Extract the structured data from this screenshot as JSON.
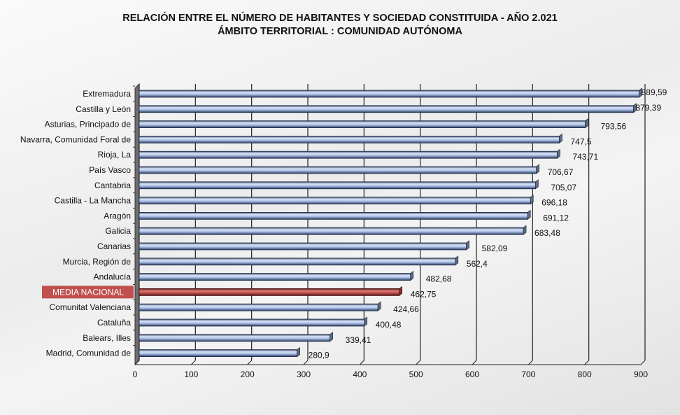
{
  "title_line1": "RELACIÓN ENTRE EL NÚMERO DE HABITANTES Y SOCIEDAD CONSTITUIDA - AÑO 2.021",
  "title_line2": "ÁMBITO TERRITORIAL : COMUNIDAD AUTÓNOMA",
  "colors": {
    "bar": "#b8c9ec",
    "bar_edge": "#1f2d4a",
    "highlight": "#c0504d"
  },
  "chart_data": {
    "type": "bar",
    "orientation": "horizontal",
    "title": "RELACIÓN ENTRE EL NÚMERO DE HABITANTES Y SOCIEDAD CONSTITUIDA - AÑO 2.021 / ÁMBITO TERRITORIAL : COMUNIDAD AUTÓNOMA",
    "categories": [
      "Extremadura",
      "Castilla y León",
      "Asturias, Principado de",
      "Navarra, Comunidad Foral de",
      "Rioja, La",
      "País Vasco",
      "Cantabria",
      "Castilla - La Mancha",
      "Aragón",
      "Galicia",
      "Canarias",
      "Murcia, Región de",
      "Andalucía",
      "MEDIA NACIONAL",
      "Comunitat Valenciana",
      "Cataluña",
      "Balears, Illes",
      "Madrid, Comunidad de"
    ],
    "values": [
      889.59,
      879.39,
      793.56,
      747.5,
      743.71,
      706.67,
      705.07,
      696.18,
      691.12,
      683.48,
      582.09,
      562.4,
      482.68,
      462.75,
      424.66,
      400.48,
      339.41,
      280.9
    ],
    "value_labels": [
      "889,59",
      "879,39",
      "793,56",
      "747,5",
      "743,71",
      "706,67",
      "705,07",
      "696,18",
      "691,12",
      "683,48",
      "582,09",
      "562,4",
      "482,68",
      "462,75",
      "424,66",
      "400,48",
      "339,41",
      "280,9"
    ],
    "highlight": "MEDIA NACIONAL",
    "xlim": [
      0,
      900
    ],
    "xticks": [
      "0",
      "100",
      "200",
      "300",
      "400",
      "500",
      "600",
      "700",
      "800",
      "900"
    ],
    "grid": true,
    "xlabel": "",
    "ylabel": ""
  }
}
